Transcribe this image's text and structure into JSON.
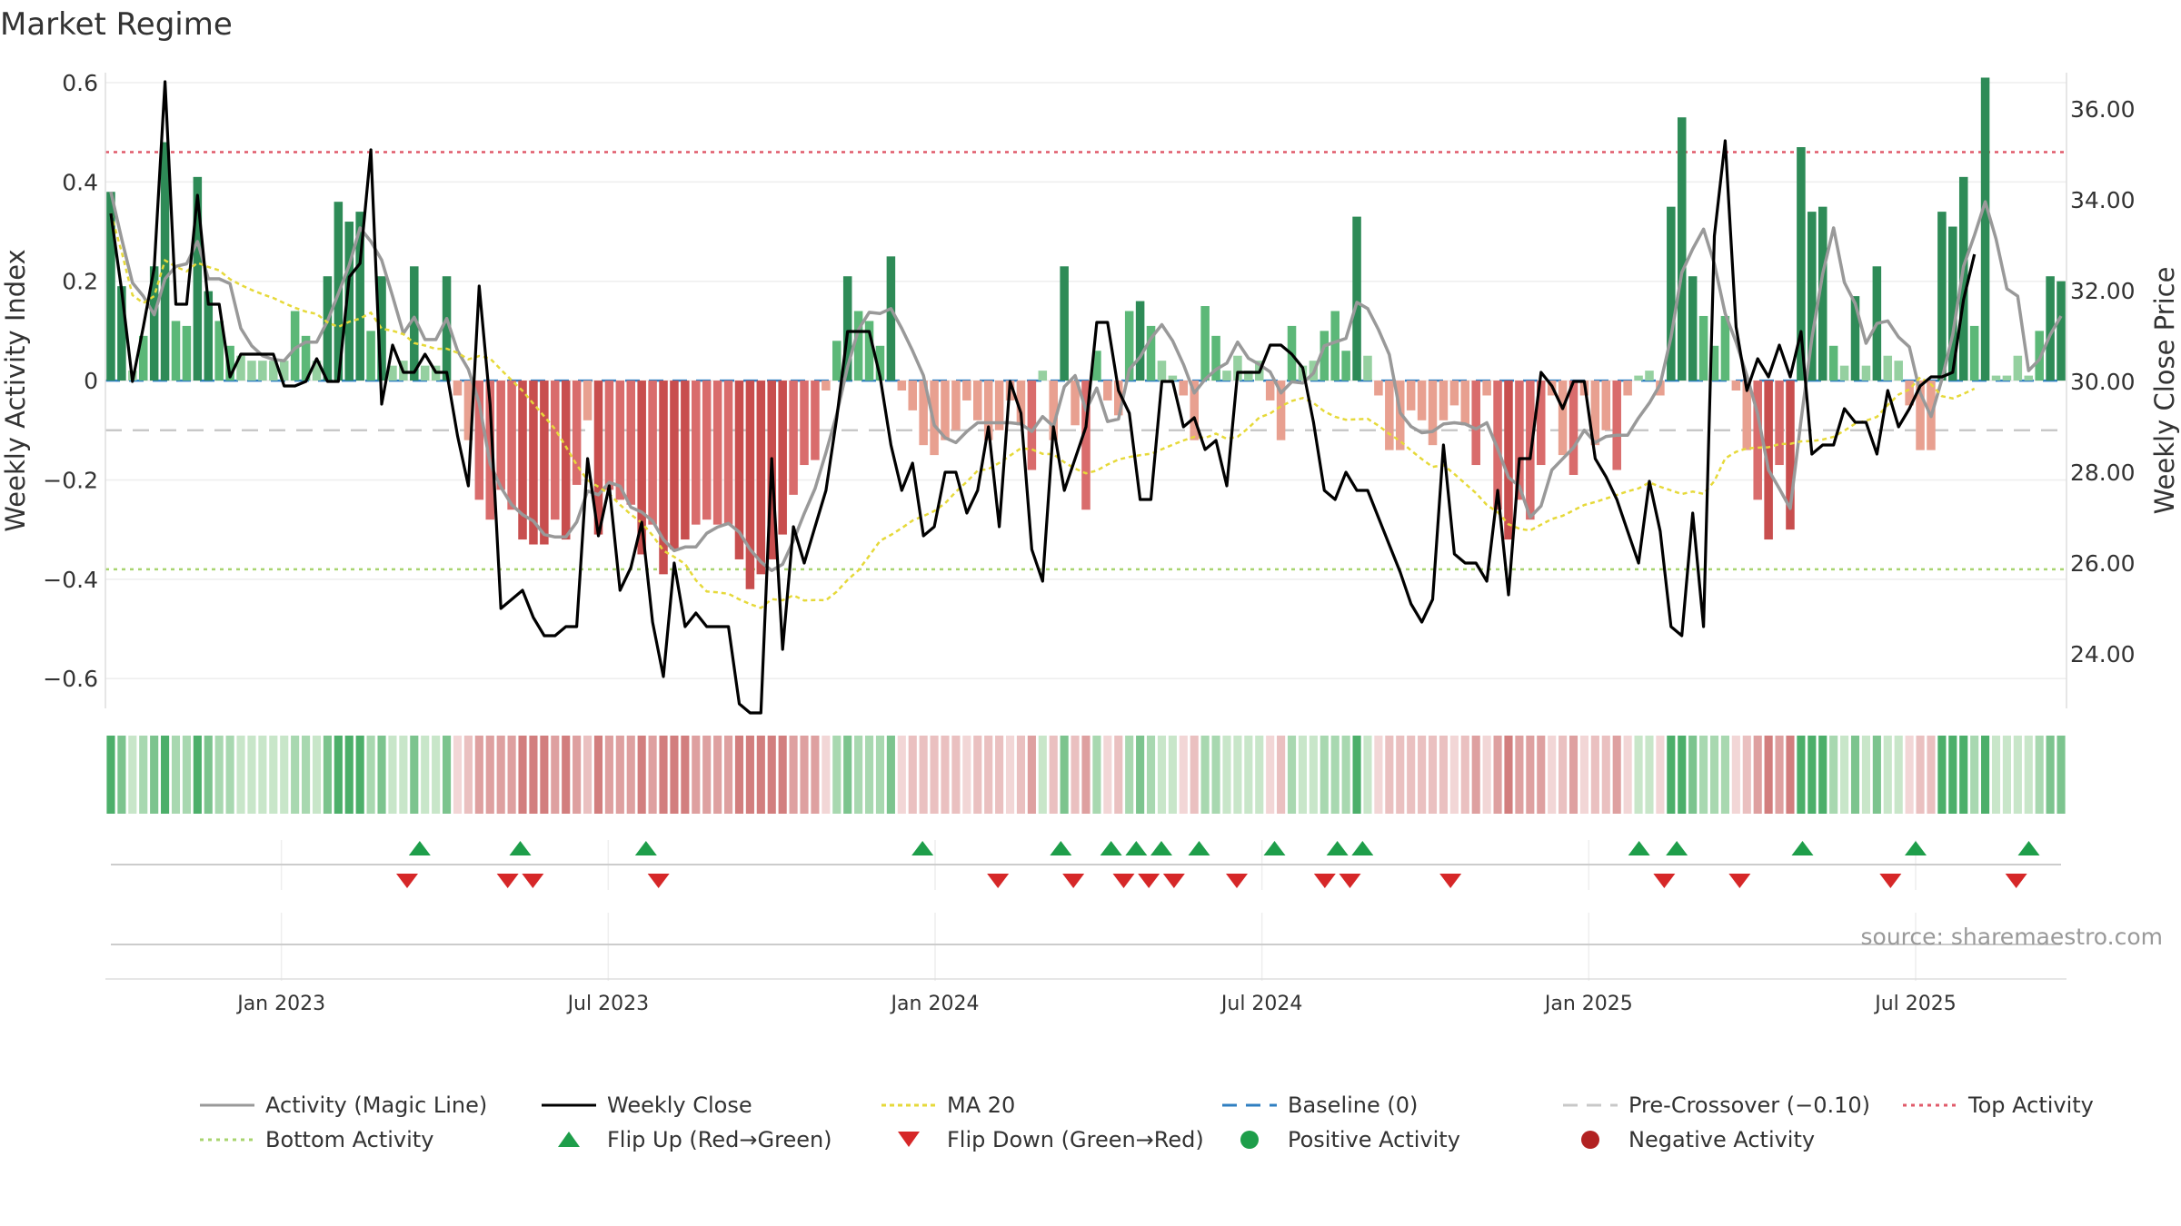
{
  "chart_data": {
    "type": "bar",
    "title": "Market Regime",
    "ylabel_left": "Weekly Activity Index",
    "ylabel_right": "Weekly Close Price",
    "source": "source: sharemaestro.com",
    "left_axis": {
      "range": [
        -0.66,
        0.62
      ],
      "ticks": [
        0.6,
        0.4,
        0.2,
        0,
        -0.2,
        -0.4,
        -0.6
      ],
      "tick_labels": [
        "0.6",
        "0.4",
        "0.2",
        "0",
        "−0.2",
        "−0.4",
        "−0.6"
      ]
    },
    "right_axis": {
      "range": [
        22.8,
        36.8
      ],
      "ticks": [
        36,
        34,
        32,
        30,
        28,
        26,
        24
      ],
      "tick_labels": [
        "36.00",
        "34.00",
        "32.00",
        "30.00",
        "28.00",
        "26.00",
        "24.00"
      ]
    },
    "x_axis": {
      "start_week": 0,
      "end_week": 156,
      "ticks": [
        {
          "label": "Jan 2023",
          "week": 14
        },
        {
          "label": "Jul 2023",
          "week": 40
        },
        {
          "label": "Jan 2024",
          "week": 66
        },
        {
          "label": "Jul 2024",
          "week": 92
        },
        {
          "label": "Jan 2025",
          "week": 118
        },
        {
          "label": "Jul 2025",
          "week": 144
        }
      ]
    },
    "reference_lines": {
      "top_activity": 0.46,
      "bottom_activity": -0.38,
      "pre_crossover": -0.1,
      "baseline": 0
    },
    "activity": [
      0.38,
      0.19,
      0.02,
      0.09,
      0.23,
      0.48,
      0.12,
      0.11,
      0.41,
      0.18,
      0.12,
      0.07,
      0.05,
      0.04,
      0.04,
      0.04,
      0.04,
      0.14,
      0.09,
      0.04,
      0.21,
      0.36,
      0.32,
      0.34,
      0.1,
      0.21,
      0.03,
      0.04,
      0.23,
      0.03,
      0.03,
      0.21,
      -0.03,
      -0.12,
      -0.24,
      -0.28,
      -0.22,
      -0.26,
      -0.32,
      -0.33,
      -0.33,
      -0.28,
      -0.32,
      -0.21,
      -0.08,
      -0.31,
      -0.22,
      -0.24,
      -0.25,
      -0.35,
      -0.29,
      -0.39,
      -0.34,
      -0.32,
      -0.29,
      -0.28,
      -0.29,
      -0.29,
      -0.36,
      -0.42,
      -0.39,
      -0.36,
      -0.31,
      -0.23,
      -0.17,
      -0.16,
      -0.02,
      0.08,
      0.21,
      0.14,
      0.12,
      0.07,
      0.25,
      -0.02,
      -0.06,
      -0.13,
      -0.15,
      -0.12,
      -0.1,
      -0.04,
      -0.08,
      -0.12,
      -0.1,
      -0.04,
      -0.09,
      -0.18,
      0.02,
      -0.12,
      0.23,
      -0.09,
      -0.26,
      0.06,
      -0.04,
      -0.07,
      0.14,
      0.16,
      0.11,
      0.04,
      0.01,
      -0.03,
      -0.12,
      0.15,
      0.09,
      0.02,
      0.05,
      0.02,
      0.04,
      -0.04,
      -0.12,
      0.11,
      0.03,
      0.04,
      0.1,
      0.14,
      0.06,
      0.33,
      0.05,
      -0.03,
      -0.14,
      -0.14,
      -0.06,
      -0.08,
      -0.13,
      -0.08,
      -0.05,
      -0.09,
      -0.17,
      -0.03,
      -0.26,
      -0.32,
      -0.24,
      -0.28,
      -0.17,
      -0.03,
      -0.15,
      -0.19,
      -0.03,
      -0.13,
      -0.1,
      -0.18,
      -0.03,
      0.01,
      0.02,
      -0.03,
      0.35,
      0.53,
      0.21,
      0.13,
      0.07,
      0.13,
      -0.02,
      -0.14,
      -0.24,
      -0.32,
      -0.17,
      -0.3,
      0.47,
      0.34,
      0.35,
      0.07,
      0.03,
      0.17,
      0.03,
      0.23,
      0.05,
      0.04,
      -0.05,
      -0.14,
      -0.14,
      0.34,
      0.31,
      0.41,
      0.11,
      0.61,
      0.01,
      0.01,
      0.05,
      0.01,
      0.1,
      0.21,
      0.2
    ],
    "weekly_close": [
      33.7,
      32.0,
      30.0,
      31.2,
      32.5,
      36.6,
      31.7,
      31.7,
      34.1,
      31.7,
      31.7,
      30.1,
      30.6,
      30.6,
      30.6,
      30.6,
      29.9,
      29.9,
      30.0,
      30.5,
      30.0,
      30.0,
      32.3,
      32.6,
      35.1,
      29.5,
      30.8,
      30.2,
      30.2,
      30.6,
      30.2,
      30.2,
      28.8,
      27.7,
      32.1,
      29.5,
      25.0,
      25.2,
      25.4,
      24.8,
      24.4,
      24.4,
      24.6,
      24.6,
      28.3,
      26.6,
      27.7,
      25.4,
      25.9,
      26.9,
      24.7,
      23.5,
      26.0,
      24.6,
      24.9,
      24.6,
      24.6,
      24.6,
      22.9,
      22.7,
      22.7,
      28.3,
      24.1,
      26.8,
      26.0,
      26.8,
      27.6,
      29.2,
      31.1,
      31.1,
      31.1,
      30.1,
      28.6,
      27.6,
      28.2,
      26.6,
      26.8,
      28.0,
      28.0,
      27.1,
      27.6,
      29.0,
      26.8,
      30.0,
      29.3,
      26.3,
      25.6,
      29.0,
      27.6,
      28.3,
      29.0,
      31.3,
      31.3,
      29.8,
      29.3,
      27.4,
      27.4,
      30.0,
      30.0,
      29.0,
      29.2,
      28.5,
      28.7,
      27.7,
      30.2,
      30.2,
      30.2,
      30.8,
      30.8,
      30.6,
      30.3,
      29.1,
      27.6,
      27.4,
      28.0,
      27.6,
      27.6,
      27.0,
      26.4,
      25.8,
      25.1,
      24.7,
      25.2,
      28.6,
      26.2,
      26.0,
      26.0,
      25.6,
      27.6,
      25.3,
      28.3,
      28.3,
      30.2,
      29.9,
      29.4,
      30.0,
      30.0,
      28.3,
      27.9,
      27.4,
      26.7,
      26.0,
      27.8,
      26.7,
      24.6,
      24.4,
      27.1,
      24.6,
      33.2,
      35.3,
      31.2,
      29.8,
      30.5,
      30.1,
      30.8,
      30.1,
      31.1,
      28.4,
      28.6,
      28.6,
      29.4,
      29.1,
      29.1,
      28.4,
      29.8,
      29.0,
      29.4,
      29.9,
      30.1,
      30.1,
      30.2,
      31.8,
      32.8
    ],
    "series": [
      {
        "name": "Activity (Magic Line)",
        "color": "#999999"
      },
      {
        "name": "Weekly Close",
        "color": "#000000"
      },
      {
        "name": "MA 20",
        "color": "#e6d93a"
      },
      {
        "name": "Baseline (0)",
        "color": "#2f7fc1"
      },
      {
        "name": "Pre-Crossover (−0.10)",
        "color": "#c8c8c8"
      },
      {
        "name": "Top Activity",
        "color": "#e05a6a"
      },
      {
        "name": "Bottom Activity",
        "color": "#a8d46f"
      },
      {
        "name": "Flip Up (Red→Green)",
        "color": "#1e9e4a"
      },
      {
        "name": "Flip Down (Green→Red)",
        "color": "#d62728"
      },
      {
        "name": "Positive Activity",
        "color": "#1e9e4a"
      },
      {
        "name": "Negative Activity",
        "color": "#b22222"
      }
    ],
    "flip_up_weeks": [
      25,
      33,
      43,
      65,
      76,
      80,
      82,
      84,
      87,
      93,
      98,
      100,
      122,
      125,
      135,
      144,
      153
    ],
    "flip_down_weeks": [
      24,
      32,
      34,
      44,
      71,
      77,
      81,
      83,
      85,
      90,
      97,
      99,
      107,
      124,
      130,
      142,
      152
    ],
    "legend_position": "bottom"
  }
}
